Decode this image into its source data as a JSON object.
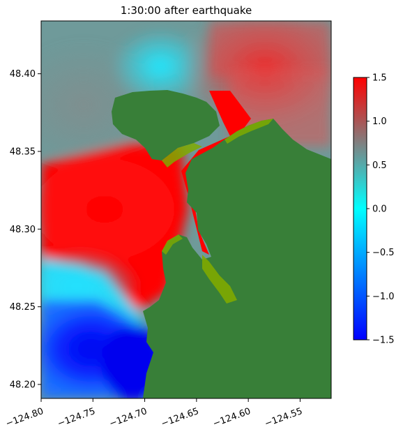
{
  "chart_data": {
    "type": "heatmap",
    "title": "1:30:00 after earthquake",
    "xlabel": "",
    "ylabel": "",
    "xlim": [
      -124.8,
      -124.52
    ],
    "ylim": [
      48.191,
      48.434
    ],
    "x_ticks": [
      -124.8,
      -124.75,
      -124.7,
      -124.65,
      -124.6,
      -124.55
    ],
    "x_tick_labels": [
      "−124.80",
      "−124.75",
      "−124.70",
      "−124.65",
      "−124.60",
      "−124.55"
    ],
    "y_ticks": [
      48.2,
      48.25,
      48.3,
      48.35,
      48.4
    ],
    "y_tick_labels": [
      "48.20",
      "48.25",
      "48.30",
      "48.35",
      "48.40"
    ],
    "colorbar": {
      "range": [
        -1.5,
        1.5
      ],
      "ticks": [
        1.5,
        1.0,
        0.5,
        0.0,
        -0.5,
        -1.0,
        -1.5
      ],
      "tick_labels": [
        "1.5",
        "1.0",
        "0.5",
        "0.0",
        "−0.5",
        "−1.0",
        "−1.5"
      ],
      "colors": [
        "#0000ff",
        "#0080ff",
        "#00ffff",
        "#808080",
        "#ff0000"
      ]
    },
    "land_color": "#387f38",
    "shallow_color": "#7faa00",
    "grid": false
  }
}
